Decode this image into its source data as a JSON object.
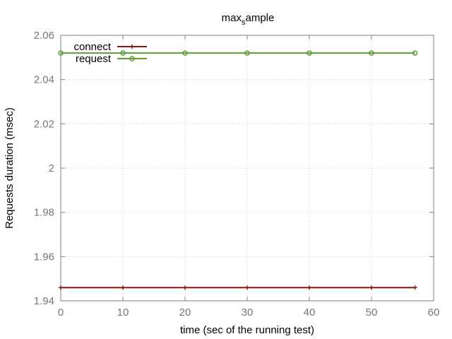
{
  "chart_data": {
    "type": "line",
    "title_main": "max",
    "title_sub": "s",
    "title_tail": "ample",
    "xlabel": "time (sec of the running test)",
    "ylabel": "Requests duration (msec)",
    "xlim": [
      0,
      60
    ],
    "ylim": [
      1.94,
      2.06
    ],
    "x_ticks": [
      0,
      10,
      20,
      30,
      40,
      50,
      60
    ],
    "x_tick_labels": [
      "0",
      "10",
      "20",
      "30",
      "40",
      "50",
      "60"
    ],
    "y_ticks": [
      1.94,
      1.96,
      1.98,
      2.0,
      2.02,
      2.04,
      2.06
    ],
    "y_tick_labels": [
      "1.94",
      "1.96",
      "1.98",
      "2",
      "2.02",
      "2.04",
      "2.06"
    ],
    "grid": true,
    "legend_position": "top-left",
    "series": [
      {
        "name": "connect",
        "color": "#8b1a0e",
        "marker": "plus",
        "x": [
          0,
          10,
          20,
          30,
          40,
          50,
          57
        ],
        "y": [
          1.946,
          1.946,
          1.946,
          1.946,
          1.946,
          1.946,
          1.946
        ]
      },
      {
        "name": "request",
        "color": "#5e9c36",
        "marker": "circle",
        "x": [
          0,
          10,
          20,
          30,
          40,
          50,
          57
        ],
        "y": [
          2.052,
          2.052,
          2.052,
          2.052,
          2.052,
          2.052,
          2.052
        ]
      }
    ]
  }
}
